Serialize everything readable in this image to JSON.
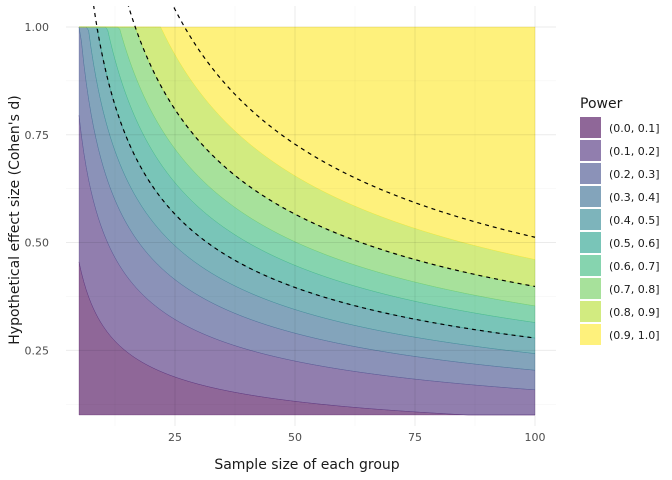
{
  "chart_data": {
    "type": "contour",
    "xlabel": "Sample size of each group",
    "ylabel": "Hypothetical effect size (Cohen's d)",
    "xlim": [
      5,
      100
    ],
    "ylim": [
      0.1,
      1.0
    ],
    "x_ticks": [
      25,
      50,
      75,
      100
    ],
    "y_ticks": [
      0.25,
      0.5,
      0.75,
      1.0
    ],
    "y_tick_labels": [
      "0.25",
      "0.50",
      "0.75",
      "1.00"
    ],
    "grid": true,
    "legend_title": "Power",
    "legend_position": "right",
    "bands": [
      {
        "label": "(0.0, 0.1]",
        "lower": 0.0,
        "upper": 0.1,
        "color": "#440154"
      },
      {
        "label": "(0.1, 0.2]",
        "lower": 0.1,
        "upper": 0.2,
        "color": "#482878"
      },
      {
        "label": "(0.2, 0.3]",
        "lower": 0.2,
        "upper": 0.3,
        "color": "#3E4A89"
      },
      {
        "label": "(0.3, 0.4]",
        "lower": 0.3,
        "upper": 0.4,
        "color": "#31688E"
      },
      {
        "label": "(0.4, 0.5]",
        "lower": 0.4,
        "upper": 0.5,
        "color": "#26828E"
      },
      {
        "label": "(0.5, 0.6]",
        "lower": 0.5,
        "upper": 0.6,
        "color": "#1F9E89"
      },
      {
        "label": "(0.6, 0.7]",
        "lower": 0.6,
        "upper": 0.7,
        "color": "#35B779"
      },
      {
        "label": "(0.7, 0.8]",
        "lower": 0.7,
        "upper": 0.8,
        "color": "#6DCD59"
      },
      {
        "label": "(0.8, 0.9]",
        "lower": 0.8,
        "upper": 0.9,
        "color": "#B4DE2C"
      },
      {
        "label": "(0.9, 1.0]",
        "lower": 0.9,
        "upper": 1.0,
        "color": "#FDE725"
      }
    ],
    "fill_alpha": 0.6,
    "dashed_power_levels": [
      0.5,
      0.8,
      0.95
    ],
    "alpha": 0.05
  }
}
